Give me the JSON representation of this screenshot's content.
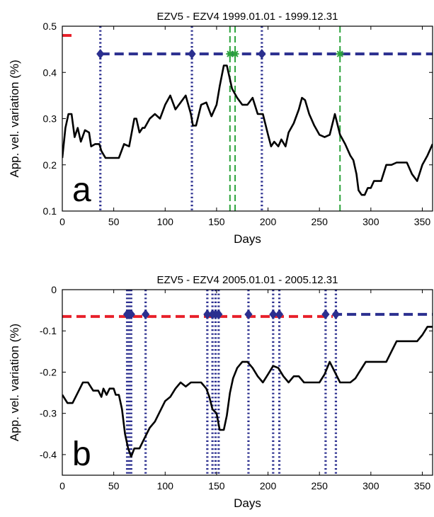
{
  "chart_data": [
    {
      "panel": "a",
      "type": "line",
      "title": "EZV5 - EZV4  1999.01.01 - 1999.12.31",
      "xlabel": "Days",
      "ylabel": "App. vel. variation (%)",
      "xlim": [
        0,
        360
      ],
      "ylim": [
        0.1,
        0.5
      ],
      "xticks": [
        0,
        50,
        100,
        150,
        200,
        250,
        300,
        350
      ],
      "yticks": [
        0.1,
        0.2,
        0.3,
        0.4,
        0.5
      ],
      "grid": false,
      "series": [
        {
          "color": "#000000",
          "x": [
            0,
            3,
            6,
            9,
            12,
            15,
            18,
            22,
            26,
            28,
            32,
            36,
            38,
            42,
            46,
            50,
            55,
            60,
            65,
            70,
            72,
            75,
            78,
            80,
            85,
            90,
            95,
            100,
            105,
            110,
            115,
            120,
            125,
            127,
            130,
            135,
            140,
            145,
            150,
            153,
            157,
            160,
            163,
            165,
            170,
            175,
            180,
            185,
            190,
            195,
            200,
            203,
            206,
            210,
            213,
            217,
            220,
            225,
            230,
            233,
            236,
            240,
            245,
            250,
            255,
            260,
            265,
            270,
            275,
            280,
            283,
            286,
            288,
            291,
            294,
            297,
            300,
            303,
            306,
            310,
            315,
            320,
            325,
            330,
            335,
            340,
            345,
            350,
            355,
            360
          ],
          "y": [
            0.215,
            0.28,
            0.31,
            0.31,
            0.26,
            0.28,
            0.25,
            0.275,
            0.27,
            0.24,
            0.245,
            0.245,
            0.23,
            0.215,
            0.215,
            0.215,
            0.215,
            0.245,
            0.24,
            0.3,
            0.3,
            0.27,
            0.28,
            0.28,
            0.3,
            0.31,
            0.3,
            0.33,
            0.35,
            0.32,
            0.335,
            0.35,
            0.31,
            0.285,
            0.285,
            0.33,
            0.335,
            0.305,
            0.33,
            0.37,
            0.415,
            0.415,
            0.385,
            0.365,
            0.345,
            0.33,
            0.33,
            0.345,
            0.31,
            0.31,
            0.265,
            0.24,
            0.25,
            0.24,
            0.255,
            0.24,
            0.27,
            0.29,
            0.32,
            0.345,
            0.34,
            0.31,
            0.285,
            0.265,
            0.26,
            0.265,
            0.31,
            0.265,
            0.245,
            0.22,
            0.21,
            0.18,
            0.145,
            0.135,
            0.135,
            0.15,
            0.15,
            0.165,
            0.165,
            0.165,
            0.2,
            0.2,
            0.205,
            0.205,
            0.205,
            0.18,
            0.165,
            0.2,
            0.22,
            0.245
          ]
        }
      ],
      "reference_lines": [
        {
          "style": "dashed",
          "color": "#e8202a",
          "y": 0.48,
          "x_from": 0,
          "x_to": 12
        },
        {
          "style": "dashed",
          "color": "#2b2f8f",
          "y": 0.44,
          "x_from": 37,
          "x_to": 360
        }
      ],
      "vertical_lines": [
        {
          "style": "dotted",
          "color": "#2b2f8f",
          "x": 37
        },
        {
          "style": "dotted",
          "color": "#2b2f8f",
          "x": 126
        },
        {
          "style": "dotted",
          "color": "#2b2f8f",
          "x": 194
        },
        {
          "style": "dashed",
          "color": "#2ca43c",
          "x": 163
        },
        {
          "style": "dashed",
          "color": "#2ca43c",
          "x": 168
        },
        {
          "style": "dashed",
          "color": "#2ca43c",
          "x": 270
        }
      ],
      "diamond_markers": {
        "color": "#2b2f8f",
        "x": [
          37,
          126,
          194
        ],
        "y": 0.44
      },
      "star_markers": {
        "color": "#2ca43c",
        "x": [
          163,
          168,
          270
        ],
        "y": 0.44
      },
      "panel_label": "a"
    },
    {
      "panel": "b",
      "type": "line",
      "title": "EZV5 - EZV4  2005.01.01 - 2005.12.31",
      "xlabel": "Days",
      "ylabel": "App. vel. variation (%)",
      "xlim": [
        0,
        360
      ],
      "ylim": [
        -0.45,
        0
      ],
      "xticks": [
        0,
        50,
        100,
        150,
        200,
        250,
        300,
        350
      ],
      "yticks": [
        0,
        -0.1,
        -0.2,
        -0.3,
        -0.4
      ],
      "grid": false,
      "series": [
        {
          "color": "#000000",
          "x": [
            0,
            5,
            10,
            15,
            20,
            25,
            30,
            35,
            38,
            40,
            43,
            46,
            50,
            52,
            55,
            58,
            61,
            64,
            67,
            70,
            75,
            80,
            85,
            90,
            95,
            100,
            105,
            110,
            115,
            120,
            125,
            130,
            135,
            140,
            143,
            146,
            150,
            153,
            157,
            160,
            163,
            166,
            170,
            175,
            180,
            185,
            190,
            195,
            200,
            205,
            210,
            215,
            220,
            225,
            230,
            235,
            240,
            245,
            250,
            255,
            260,
            265,
            270,
            275,
            280,
            285,
            290,
            295,
            300,
            305,
            310,
            315,
            320,
            325,
            330,
            335,
            340,
            345,
            350,
            355,
            360
          ],
          "y": [
            -0.255,
            -0.275,
            -0.275,
            -0.25,
            -0.225,
            -0.225,
            -0.245,
            -0.245,
            -0.26,
            -0.24,
            -0.255,
            -0.24,
            -0.24,
            -0.255,
            -0.255,
            -0.29,
            -0.35,
            -0.385,
            -0.405,
            -0.385,
            -0.385,
            -0.36,
            -0.335,
            -0.32,
            -0.295,
            -0.27,
            -0.26,
            -0.24,
            -0.225,
            -0.235,
            -0.225,
            -0.225,
            -0.225,
            -0.24,
            -0.26,
            -0.29,
            -0.3,
            -0.34,
            -0.34,
            -0.305,
            -0.25,
            -0.215,
            -0.19,
            -0.175,
            -0.175,
            -0.19,
            -0.21,
            -0.225,
            -0.205,
            -0.185,
            -0.19,
            -0.21,
            -0.225,
            -0.21,
            -0.21,
            -0.225,
            -0.225,
            -0.225,
            -0.225,
            -0.205,
            -0.175,
            -0.2,
            -0.225,
            -0.225,
            -0.225,
            -0.215,
            -0.195,
            -0.175,
            -0.175,
            -0.175,
            -0.175,
            -0.175,
            -0.15,
            -0.125,
            -0.125,
            -0.125,
            -0.125,
            -0.125,
            -0.11,
            -0.09,
            -0.09
          ]
        }
      ],
      "reference_lines": [
        {
          "style": "dashed",
          "color": "#e8202a",
          "y": -0.065,
          "x_from": 0,
          "x_to": 263
        },
        {
          "style": "dashed",
          "color": "#2b2f8f",
          "y": -0.06,
          "x_from": 263,
          "x_to": 360
        }
      ],
      "vertical_lines": [
        {
          "style": "dotted",
          "color": "#2b2f8f",
          "x": 63
        },
        {
          "style": "dotted",
          "color": "#2b2f8f",
          "x": 65
        },
        {
          "style": "dotted",
          "color": "#2b2f8f",
          "x": 67
        },
        {
          "style": "dotted",
          "color": "#2b2f8f",
          "x": 81
        },
        {
          "style": "dotted",
          "color": "#2b2f8f",
          "x": 141
        },
        {
          "style": "dotted",
          "color": "#2b2f8f",
          "x": 146
        },
        {
          "style": "dotted",
          "color": "#2b2f8f",
          "x": 149
        },
        {
          "style": "dotted",
          "color": "#2b2f8f",
          "x": 152
        },
        {
          "style": "dotted",
          "color": "#2b2f8f",
          "x": 181
        },
        {
          "style": "dotted",
          "color": "#2b2f8f",
          "x": 205
        },
        {
          "style": "dotted",
          "color": "#2b2f8f",
          "x": 211
        },
        {
          "style": "dotted",
          "color": "#2b2f8f",
          "x": 256
        },
        {
          "style": "dotted",
          "color": "#2b2f8f",
          "x": 266
        }
      ],
      "diamond_markers": {
        "color": "#2b2f8f",
        "x": [
          63,
          65,
          67,
          81,
          141,
          146,
          149,
          152,
          181,
          205,
          211,
          256,
          266
        ],
        "y": -0.06
      },
      "panel_label": "b"
    }
  ]
}
